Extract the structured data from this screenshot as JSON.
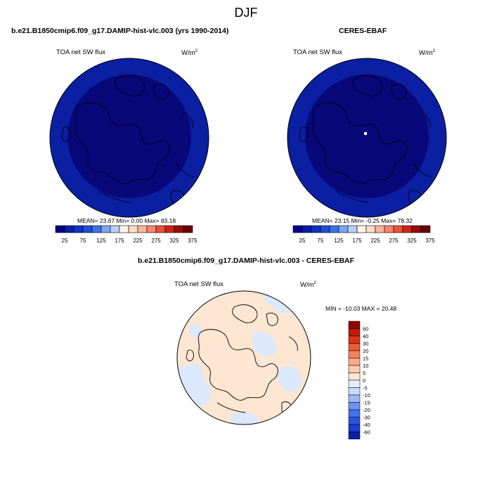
{
  "header": {
    "title": "DJF"
  },
  "panels": [
    {
      "subtitle": "b.e21.B1850cmip6.f09_g17.DAMIP-hist-vlc.003 (yrs 1990-2014)",
      "variable": "TOA net SW flux",
      "units": "W/m",
      "units_sup": "2",
      "stats": "MEAN=  23.67  Min=   0.00  Max=  83.18"
    },
    {
      "subtitle": "CERES-EBAF",
      "variable": "TOA net SW flux",
      "units": "W/m",
      "units_sup": "2",
      "stats": "MEAN=  23.15  Min=  -0.25  Max=  78.32"
    },
    {
      "subtitle": "b.e21.B1850cmip6.f09_g17.DAMIP-hist-vlc.003 - CERES-EBAF",
      "variable": "TOA net SW flux",
      "units": "W/m",
      "units_sup": "2",
      "stats": "MIN = -10.03 MAX =  20.48"
    }
  ],
  "colors": {
    "abs_levels": [
      "#00008b",
      "#0a1ea8",
      "#0f34c4",
      "#1c4fd9",
      "#3e72e8",
      "#7aa6f2",
      "#b6d0f8",
      "#fff5e6",
      "#fddcc4",
      "#fbb49a",
      "#f6866c",
      "#e65339",
      "#cc2516",
      "#9b0a07",
      "#6b0000"
    ],
    "diff_levels": [
      "#ffffff",
      "#08087a",
      "#0b1fa3",
      "#1a3ed3",
      "#2a55e0",
      "#4470ea",
      "#6d93f0",
      "#9bb8f5",
      "#c9dbf9",
      "#e6eefb",
      "#fde6d2",
      "#fccbae",
      "#faa988",
      "#f5825f",
      "#ec5a36",
      "#dd3515",
      "#c11a08",
      "#8f0600"
    ],
    "map_fill_outer": "#0b1fa3",
    "map_fill_inner": "#08087a",
    "diff_base": "#fde6d2",
    "diff_neg": "#dce8fb",
    "coast": "#000000"
  },
  "chart_data": [
    {
      "type": "heatmap",
      "title": "b.e21.B1850cmip6.f09_g17.DAMIP-hist-vlc.003 (yrs 1990-2014)",
      "variable": "TOA net SW flux",
      "units": "W/m2",
      "projection": "north-polar-stereographic",
      "colorbar_ticks": [
        "25",
        "75",
        "125",
        "175",
        "225",
        "275",
        "325",
        "375"
      ],
      "colorbar_levels": [
        0,
        25,
        50,
        75,
        100,
        125,
        150,
        175,
        200,
        225,
        250,
        275,
        300,
        325,
        350,
        375
      ],
      "mean": 23.67,
      "min": 0.0,
      "max": 83.18
    },
    {
      "type": "heatmap",
      "title": "CERES-EBAF",
      "variable": "TOA net SW flux",
      "units": "W/m2",
      "projection": "north-polar-stereographic",
      "colorbar_ticks": [
        "25",
        "75",
        "125",
        "175",
        "225",
        "275",
        "325",
        "375"
      ],
      "colorbar_levels": [
        0,
        25,
        50,
        75,
        100,
        125,
        150,
        175,
        200,
        225,
        250,
        275,
        300,
        325,
        350,
        375
      ],
      "mean": 23.15,
      "min": -0.25,
      "max": 78.32
    },
    {
      "type": "heatmap",
      "title": "b.e21.B1850cmip6.f09_g17.DAMIP-hist-vlc.003 - CERES-EBAF",
      "variable": "TOA net SW flux",
      "units": "W/m2",
      "projection": "north-polar-stereographic",
      "colorbar_ticks": [
        "60",
        "40",
        "30",
        "20",
        "15",
        "10",
        "5",
        "0",
        "-5",
        "-10",
        "-15",
        "-20",
        "-30",
        "-40",
        "-60"
      ],
      "min": -10.03,
      "max": 20.48
    }
  ]
}
